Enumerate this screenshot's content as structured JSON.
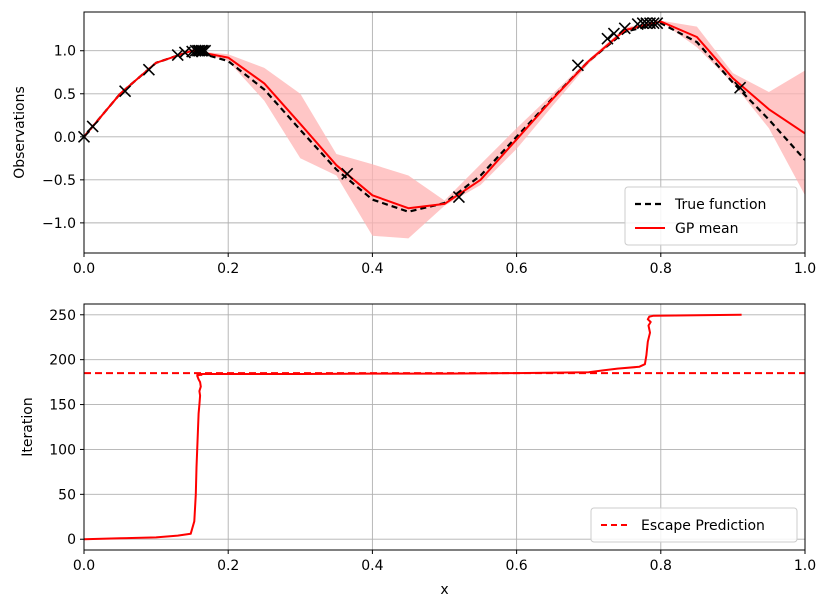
{
  "colors": {
    "gp_mean": "#ff0000",
    "confidence_band": "#ffb3b3",
    "true_function": "#000000",
    "observation_marker": "#000000",
    "escape_prediction": "#ff0000",
    "grid": "#b0b0b0"
  },
  "chart_data": [
    {
      "type": "line",
      "title": "",
      "xlabel": "",
      "ylabel": "Observations",
      "xlim": [
        0.0,
        1.0
      ],
      "ylim": [
        -1.35,
        1.45
      ],
      "grid": true,
      "legend_position": "bottom-right",
      "x_ticks": [
        "0.0",
        "0.2",
        "0.4",
        "0.6",
        "0.8",
        "1.0"
      ],
      "y_ticks": [
        "−1.0",
        "−0.5",
        "0.0",
        "0.5",
        "1.0"
      ],
      "legend": [
        "True function",
        "GP mean"
      ],
      "series": [
        {
          "name": "True function",
          "style": "dashed",
          "x": [
            0.0,
            0.05,
            0.1,
            0.15,
            0.2,
            0.25,
            0.3,
            0.35,
            0.4,
            0.45,
            0.5,
            0.55,
            0.6,
            0.65,
            0.7,
            0.75,
            0.8,
            0.85,
            0.9,
            0.95,
            1.0
          ],
          "y": [
            0.0,
            0.5,
            0.86,
            1.0,
            0.88,
            0.55,
            0.08,
            -0.38,
            -0.73,
            -0.87,
            -0.77,
            -0.45,
            0.0,
            0.45,
            0.88,
            1.22,
            1.32,
            1.1,
            0.63,
            0.2,
            -0.27
          ]
        },
        {
          "name": "GP mean",
          "style": "solid",
          "x": [
            0.0,
            0.05,
            0.1,
            0.15,
            0.2,
            0.25,
            0.3,
            0.35,
            0.4,
            0.45,
            0.5,
            0.55,
            0.6,
            0.65,
            0.7,
            0.75,
            0.8,
            0.85,
            0.9,
            0.95,
            1.0
          ],
          "y": [
            0.0,
            0.5,
            0.86,
            1.0,
            0.92,
            0.62,
            0.15,
            -0.33,
            -0.68,
            -0.83,
            -0.78,
            -0.5,
            -0.03,
            0.44,
            0.88,
            1.24,
            1.34,
            1.16,
            0.68,
            0.32,
            0.04
          ]
        }
      ],
      "confidence_band": {
        "x": [
          0.0,
          0.05,
          0.1,
          0.15,
          0.2,
          0.25,
          0.3,
          0.35,
          0.4,
          0.45,
          0.5,
          0.55,
          0.6,
          0.65,
          0.7,
          0.75,
          0.8,
          0.85,
          0.9,
          0.95,
          1.0
        ],
        "lower": [
          0.0,
          0.5,
          0.86,
          1.0,
          0.88,
          0.42,
          -0.25,
          -0.45,
          -1.15,
          -1.18,
          -0.8,
          -0.56,
          -0.14,
          0.36,
          0.85,
          1.22,
          1.34,
          1.04,
          0.62,
          0.1,
          -0.68
        ],
        "upper": [
          0.0,
          0.5,
          0.86,
          1.0,
          0.96,
          0.8,
          0.5,
          -0.2,
          -0.32,
          -0.45,
          -0.74,
          -0.32,
          0.1,
          0.5,
          0.9,
          1.27,
          1.35,
          1.28,
          0.74,
          0.52,
          0.77
        ]
      },
      "observations": {
        "x": [
          0.0,
          0.012,
          0.057,
          0.09,
          0.13,
          0.14,
          0.15,
          0.155,
          0.158,
          0.16,
          0.163,
          0.165,
          0.168,
          0.365,
          0.52,
          0.685,
          0.726,
          0.735,
          0.75,
          0.768,
          0.775,
          0.78,
          0.785,
          0.79,
          0.795,
          0.91
        ],
        "y": [
          0.0,
          0.12,
          0.53,
          0.78,
          0.95,
          0.98,
          0.99,
          1.0,
          1.0,
          1.0,
          1.0,
          1.0,
          1.0,
          -0.43,
          -0.7,
          0.83,
          1.14,
          1.2,
          1.26,
          1.31,
          1.32,
          1.32,
          1.32,
          1.32,
          1.32,
          0.57
        ]
      }
    },
    {
      "type": "line",
      "title": "",
      "xlabel": "x",
      "ylabel": "Iteration",
      "xlim": [
        0.0,
        1.0
      ],
      "ylim": [
        -12,
        262
      ],
      "grid": true,
      "legend_position": "bottom-right",
      "x_ticks": [
        "0.0",
        "0.2",
        "0.4",
        "0.6",
        "0.8",
        "1.0"
      ],
      "y_ticks": [
        "0",
        "50",
        "100",
        "150",
        "200",
        "250"
      ],
      "legend": [
        "Escape Prediction"
      ],
      "escape_prediction": 185,
      "series": [
        {
          "name": "",
          "style": "solid",
          "x": [
            0.0,
            0.05,
            0.1,
            0.13,
            0.148,
            0.153,
            0.155,
            0.156,
            0.157,
            0.158,
            0.159,
            0.16,
            0.161,
            0.16,
            0.162,
            0.161,
            0.159,
            0.158,
            0.157,
            0.16,
            0.163,
            0.158,
            0.157,
            0.16,
            0.2,
            0.3,
            0.4,
            0.5,
            0.6,
            0.7,
            0.72,
            0.74,
            0.77,
            0.778,
            0.78,
            0.782,
            0.785,
            0.783,
            0.786,
            0.782,
            0.784,
            0.79,
            0.85,
            0.912
          ],
          "y": [
            0,
            1,
            2,
            4,
            6,
            20,
            50,
            80,
            100,
            120,
            140,
            150,
            160,
            165,
            170,
            175,
            178,
            180,
            182,
            183,
            183,
            184,
            184,
            184,
            184,
            184,
            184.5,
            184.5,
            185,
            186,
            188,
            190,
            192,
            195,
            205,
            220,
            230,
            238,
            242,
            245,
            248,
            249,
            249.5,
            250
          ]
        }
      ]
    }
  ]
}
